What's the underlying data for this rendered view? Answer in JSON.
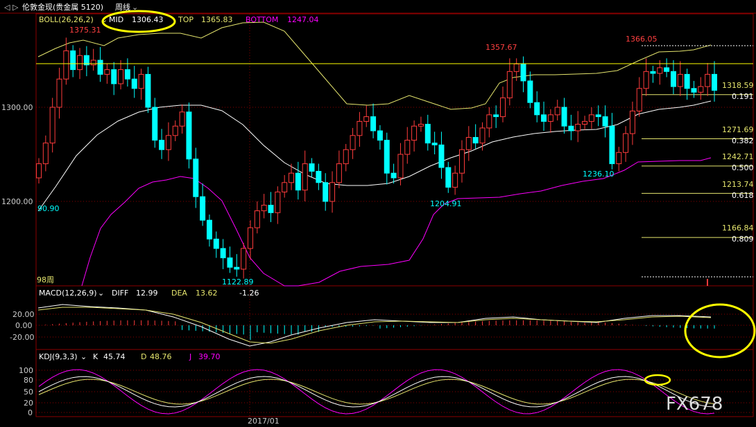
{
  "titlebar": {
    "title": "伦敦金现(贵金属 5120)",
    "period": "周线"
  },
  "boll": {
    "label": "BOLL(26,26,2)",
    "mid_label": "MID",
    "mid_value": "1306.43",
    "top_label": "TOP",
    "top_value": "1365.83",
    "bottom_label": "BOTTOM",
    "bottom_value": "1247.04"
  },
  "price_axis": {
    "ticks": [
      "1300.00",
      "1200.00"
    ]
  },
  "annotations": {
    "high1": "1375.31",
    "high2": "1357.67",
    "high3": "1366.05",
    "low1": "1122.89",
    "low2": "1204.91",
    "low3": "1236.10",
    "left_value": "90.90",
    "weeks": "98周"
  },
  "fib": [
    {
      "price": "1318.59",
      "ratio": "0.191"
    },
    {
      "price": "1271.69",
      "ratio": "0.382"
    },
    {
      "price": "1242.71",
      "ratio": "0.500"
    },
    {
      "price": "1213.74",
      "ratio": "0.618"
    },
    {
      "price": "1166.84",
      "ratio": "0.809"
    }
  ],
  "macd": {
    "label": "MACD(12,26,9)",
    "diff_label": "DIFF",
    "diff_value": "12.99",
    "dea_label": "DEA",
    "dea_value": "13.62",
    "macd_value": "-1.26",
    "ticks": [
      "20.00",
      "0.00",
      "-20.00"
    ]
  },
  "kdj": {
    "label": "KDJ(9,3,3)",
    "k_label": "K",
    "k_value": "45.74",
    "d_label": "D",
    "d_value": "48.76",
    "j_label": "J",
    "j_value": "39.70",
    "ticks": [
      "100",
      "80",
      "50",
      "20",
      "0"
    ]
  },
  "date_label": "2017/01",
  "watermark": "FX678",
  "colors": {
    "up": "#ff3c3c",
    "down": "#00ffff",
    "mid_line": "#ffffff",
    "top_line": "#e6e66e",
    "bottom_line": "#ff00ff",
    "highlight": "#ffff00",
    "grid": "#8b0000"
  }
}
